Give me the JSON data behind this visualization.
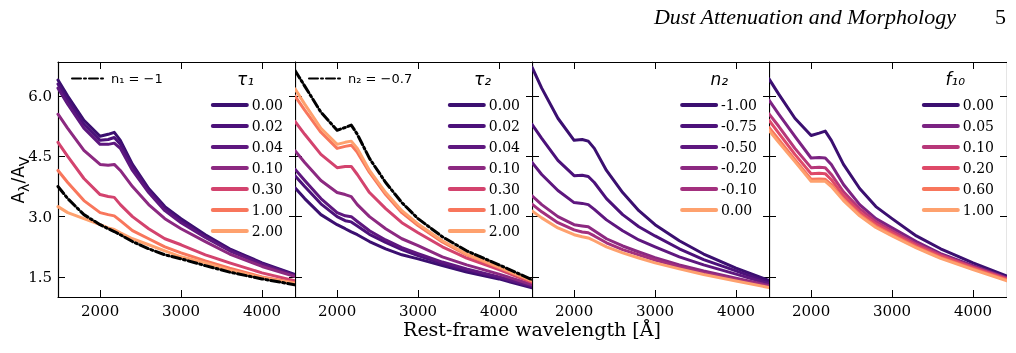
{
  "chart_data": [
    {
      "type": "line",
      "xlabel": "Rest-frame wavelength [Å]",
      "ylabel": "A$_{λ}$/A$_{V}$",
      "legend_title": "τ₁",
      "legend": "top right",
      "xlim": [
        1480,
        4420
      ],
      "ylim": [
        1.0,
        6.85
      ],
      "xticks": [
        2000,
        3000,
        4000
      ],
      "yticks": [
        {
          "value": 1.5,
          "label": "1.5"
        },
        {
          "value": 3.0,
          "label": "3.0"
        },
        {
          "value": 4.5,
          "label": "4.5"
        },
        {
          "value": 6.0,
          "label": "6.0"
        }
      ],
      "x": [
        1480,
        1600,
        1800,
        2000,
        2100,
        2175,
        2250,
        2400,
        2600,
        2800,
        3000,
        3300,
        3600,
        4000,
        4420
      ],
      "series": [
        {
          "name": "0.00",
          "color": "#3b0f70",
          "values": [
            6.4,
            6.0,
            5.4,
            5.0,
            5.05,
            5.1,
            4.9,
            4.3,
            3.7,
            3.25,
            2.95,
            2.55,
            2.2,
            1.85,
            1.55
          ]
        },
        {
          "name": "0.02",
          "color": "#4c117a",
          "values": [
            6.3,
            5.9,
            5.3,
            4.9,
            4.92,
            4.97,
            4.8,
            4.25,
            3.65,
            3.2,
            2.9,
            2.5,
            2.17,
            1.83,
            1.53
          ]
        },
        {
          "name": "0.04",
          "color": "#5e177f",
          "values": [
            6.2,
            5.8,
            5.2,
            4.8,
            4.8,
            4.83,
            4.7,
            4.15,
            3.6,
            3.15,
            2.85,
            2.48,
            2.15,
            1.81,
            1.52
          ]
        },
        {
          "name": "0.10",
          "color": "#8c2981",
          "values": [
            5.55,
            5.2,
            4.65,
            4.3,
            4.28,
            4.3,
            4.15,
            3.75,
            3.3,
            2.95,
            2.7,
            2.38,
            2.07,
            1.76,
            1.5
          ]
        },
        {
          "name": "0.30",
          "color": "#d3436e",
          "values": [
            4.85,
            4.5,
            3.95,
            3.55,
            3.5,
            3.48,
            3.3,
            3.0,
            2.7,
            2.45,
            2.3,
            2.05,
            1.85,
            1.6,
            1.4
          ]
        },
        {
          "name": "1.00",
          "color": "#f8765c",
          "values": [
            4.15,
            3.85,
            3.4,
            3.1,
            3.05,
            3.02,
            2.9,
            2.65,
            2.45,
            2.25,
            2.1,
            1.9,
            1.72,
            1.5,
            1.35
          ]
        },
        {
          "name": "2.00",
          "color": "#fea16e",
          "values": [
            3.25,
            3.1,
            2.95,
            2.8,
            2.72,
            2.68,
            2.6,
            2.45,
            2.3,
            2.15,
            2.0,
            1.85,
            1.67,
            1.48,
            1.33
          ]
        },
        {
          "name": "n₁ = −1",
          "color": "#000000",
          "line_style": "dashdot",
          "values": [
            3.75,
            3.45,
            3.05,
            2.8,
            2.7,
            2.63,
            2.55,
            2.38,
            2.2,
            2.05,
            1.95,
            1.78,
            1.62,
            1.45,
            1.3
          ]
        }
      ]
    },
    {
      "type": "line",
      "legend_title": "τ₂",
      "legend": "top right",
      "tick_labels": "x",
      "xlim": [
        1480,
        4420
      ],
      "ylim": [
        1.0,
        6.85
      ],
      "xticks": [
        2000,
        3000,
        4000
      ],
      "yticks": [
        1.5,
        3,
        4.5,
        6
      ],
      "x": [
        1480,
        1600,
        1800,
        2000,
        2100,
        2175,
        2250,
        2400,
        2600,
        2800,
        3000,
        3300,
        3600,
        4000,
        4420
      ],
      "series": [
        {
          "name": "0.00",
          "color": "#3b0f70",
          "values": [
            3.72,
            3.45,
            3.05,
            2.8,
            2.7,
            2.62,
            2.55,
            2.38,
            2.2,
            2.05,
            1.95,
            1.78,
            1.62,
            1.45,
            1.22
          ]
        },
        {
          "name": "0.02",
          "color": "#4c117a",
          "values": [
            4.02,
            3.75,
            3.32,
            3.0,
            2.9,
            2.87,
            2.77,
            2.56,
            2.36,
            2.18,
            2.03,
            1.83,
            1.67,
            1.48,
            1.25
          ]
        },
        {
          "name": "0.04",
          "color": "#5e177f",
          "values": [
            4.18,
            3.9,
            3.45,
            3.1,
            3.02,
            3.0,
            2.88,
            2.65,
            2.42,
            2.23,
            2.08,
            1.87,
            1.7,
            1.5,
            1.27
          ]
        },
        {
          "name": "0.10",
          "color": "#8c2981",
          "values": [
            4.64,
            4.35,
            3.9,
            3.6,
            3.55,
            3.5,
            3.3,
            3.0,
            2.7,
            2.45,
            2.28,
            2.0,
            1.8,
            1.57,
            1.3
          ]
        },
        {
          "name": "0.30",
          "color": "#d3436e",
          "values": [
            5.37,
            5.05,
            4.55,
            4.22,
            4.25,
            4.25,
            4.05,
            3.6,
            3.2,
            2.85,
            2.6,
            2.25,
            1.97,
            1.68,
            1.35
          ]
        },
        {
          "name": "1.00",
          "color": "#f8765c",
          "values": [
            6.0,
            5.65,
            5.1,
            4.7,
            4.75,
            4.78,
            4.6,
            4.1,
            3.55,
            3.1,
            2.78,
            2.37,
            2.05,
            1.73,
            1.38
          ]
        },
        {
          "name": "2.00",
          "color": "#fea16e",
          "values": [
            6.18,
            5.8,
            5.2,
            4.8,
            4.85,
            4.88,
            4.7,
            4.15,
            3.6,
            3.15,
            2.82,
            2.4,
            2.07,
            1.75,
            1.4
          ]
        },
        {
          "name": "n₂ = −0.7",
          "color": "#000000",
          "line_style": "dashdot",
          "values": [
            6.64,
            6.25,
            5.6,
            5.15,
            5.22,
            5.28,
            5.05,
            4.45,
            3.85,
            3.35,
            2.95,
            2.5,
            2.15,
            1.8,
            1.42
          ]
        }
      ]
    },
    {
      "type": "line",
      "legend_title": "n₂",
      "legend": "top right",
      "tick_labels": "x",
      "xlim": [
        1480,
        4420
      ],
      "ylim": [
        1.0,
        6.85
      ],
      "xticks": [
        2000,
        3000,
        4000
      ],
      "yticks": [
        1.5,
        3,
        4.5,
        6
      ],
      "x": [
        1480,
        1600,
        1800,
        2000,
        2100,
        2175,
        2250,
        2400,
        2600,
        2800,
        3000,
        3300,
        3600,
        4000,
        4420
      ],
      "series": [
        {
          "name": "-1.00",
          "color": "#3b0f70",
          "values": [
            6.72,
            6.2,
            5.45,
            4.9,
            4.92,
            4.88,
            4.7,
            4.15,
            3.6,
            3.15,
            2.8,
            2.4,
            2.07,
            1.72,
            1.4
          ]
        },
        {
          "name": "-0.75",
          "color": "#4c117a",
          "values": [
            5.3,
            4.95,
            4.4,
            4.02,
            4.03,
            4.0,
            3.85,
            3.45,
            3.05,
            2.75,
            2.52,
            2.2,
            1.93,
            1.65,
            1.35
          ]
        },
        {
          "name": "-0.50",
          "color": "#5e177f",
          "values": [
            4.35,
            4.05,
            3.65,
            3.35,
            3.33,
            3.3,
            3.18,
            2.92,
            2.65,
            2.42,
            2.25,
            2.0,
            1.8,
            1.57,
            1.32
          ]
        },
        {
          "name": "-0.20",
          "color": "#8c2981",
          "values": [
            3.52,
            3.3,
            3.0,
            2.8,
            2.77,
            2.75,
            2.65,
            2.45,
            2.27,
            2.12,
            1.98,
            1.8,
            1.65,
            1.47,
            1.28
          ]
        },
        {
          "name": "-0.10",
          "color": "#a3307e",
          "values": [
            3.31,
            3.12,
            2.85,
            2.67,
            2.62,
            2.6,
            2.52,
            2.35,
            2.18,
            2.05,
            1.92,
            1.75,
            1.6,
            1.43,
            1.26
          ]
        },
        {
          "name": "0.00",
          "color": "#fea16e",
          "values": [
            3.14,
            2.97,
            2.72,
            2.55,
            2.5,
            2.47,
            2.4,
            2.25,
            2.1,
            1.97,
            1.85,
            1.7,
            1.56,
            1.4,
            1.23
          ]
        }
      ]
    },
    {
      "type": "line",
      "title": "Dust Attenuation and Morphology",
      "annotations": [
        "5"
      ],
      "legend_title": "f₁₀",
      "legend": "top right",
      "tick_labels": "x",
      "xlim": [
        1480,
        4420
      ],
      "ylim": [
        1.0,
        6.85
      ],
      "xticks": [
        2000,
        3000,
        4000
      ],
      "yticks": [
        1.5,
        3,
        4.5,
        6
      ],
      "x": [
        1480,
        1600,
        1800,
        2000,
        2100,
        2175,
        2250,
        2400,
        2600,
        2800,
        3000,
        3300,
        3600,
        4000,
        4420
      ],
      "series": [
        {
          "name": "0.00",
          "color": "#3b0f70",
          "values": [
            6.43,
            6.05,
            5.45,
            5.02,
            5.08,
            5.13,
            4.9,
            4.3,
            3.7,
            3.25,
            2.95,
            2.52,
            2.2,
            1.85,
            1.52
          ]
        },
        {
          "name": "0.05",
          "color": "#7b2382",
          "values": [
            5.9,
            5.55,
            5.0,
            4.46,
            4.47,
            4.46,
            4.3,
            3.8,
            3.3,
            2.95,
            2.72,
            2.38,
            2.08,
            1.78,
            1.48
          ]
        },
        {
          "name": "0.10",
          "color": "#b73779",
          "values": [
            5.56,
            5.25,
            4.7,
            4.22,
            4.23,
            4.22,
            4.05,
            3.62,
            3.2,
            2.88,
            2.65,
            2.32,
            2.05,
            1.75,
            1.46
          ]
        },
        {
          "name": "0.20",
          "color": "#de4968",
          "values": [
            5.4,
            5.08,
            4.55,
            4.07,
            4.08,
            4.07,
            3.92,
            3.52,
            3.12,
            2.82,
            2.6,
            2.28,
            2.02,
            1.73,
            1.44
          ]
        },
        {
          "name": "0.60",
          "color": "#f8765c",
          "values": [
            5.22,
            4.92,
            4.42,
            3.93,
            3.94,
            3.93,
            3.8,
            3.43,
            3.05,
            2.76,
            2.55,
            2.24,
            1.98,
            1.7,
            1.42
          ]
        },
        {
          "name": "1.00",
          "color": "#fea16e",
          "values": [
            5.15,
            4.85,
            4.37,
            3.88,
            3.89,
            3.88,
            3.75,
            3.4,
            3.02,
            2.73,
            2.52,
            2.22,
            1.96,
            1.68,
            1.4
          ]
        }
      ]
    }
  ]
}
